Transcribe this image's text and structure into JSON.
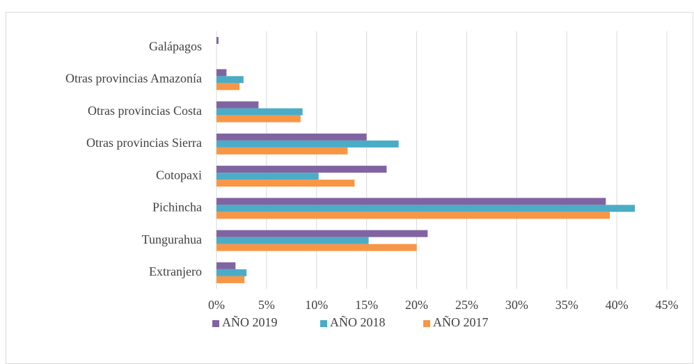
{
  "chart_data": {
    "type": "bar",
    "orientation": "horizontal",
    "categories": [
      "Galápagos",
      "Otras provincias Amazonía",
      "Otras provincias Costa",
      "Otras provincias Sierra",
      "Cotopaxi",
      "Pichincha",
      "Tungurahua",
      "Extranjero"
    ],
    "series": [
      {
        "name": "AÑO 2019",
        "color": "#8064a2",
        "values": [
          0.2,
          1.0,
          4.2,
          15.0,
          17.0,
          38.9,
          21.1,
          1.9
        ]
      },
      {
        "name": "AÑO 2018",
        "color": "#4bacc6",
        "values": [
          0,
          2.7,
          8.6,
          18.2,
          10.2,
          41.8,
          15.2,
          3.0
        ]
      },
      {
        "name": "AÑO 2017",
        "color": "#f79646",
        "values": [
          0,
          2.3,
          8.4,
          13.1,
          13.8,
          39.3,
          20.0,
          2.8
        ]
      }
    ],
    "xlim": [
      0,
      45
    ],
    "xticks": [
      {
        "value": 0,
        "label": "0%"
      },
      {
        "value": 5,
        "label": "5%"
      },
      {
        "value": 10,
        "label": "10%"
      },
      {
        "value": 15,
        "label": "15%"
      },
      {
        "value": 20,
        "label": "20%"
      },
      {
        "value": 25,
        "label": "25%"
      },
      {
        "value": 30,
        "label": "30%"
      },
      {
        "value": 35,
        "label": "35%"
      },
      {
        "value": 40,
        "label": "40%"
      },
      {
        "value": 45,
        "label": "45%"
      }
    ],
    "grid": true,
    "legend": "bottom"
  }
}
